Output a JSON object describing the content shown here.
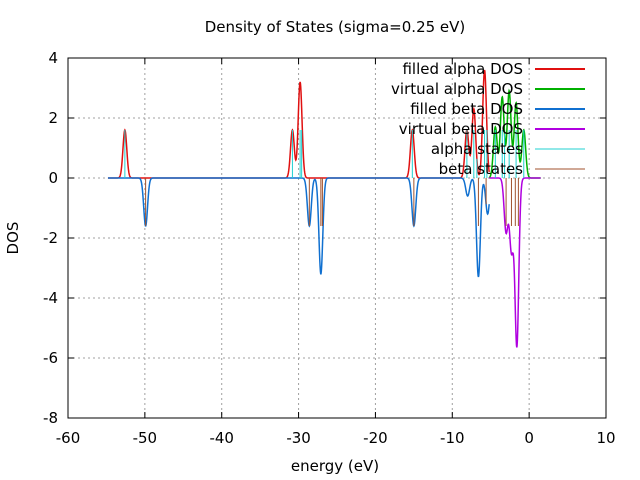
{
  "chart_data": {
    "type": "line",
    "title": "Density of States (sigma=0.25 eV)",
    "xlabel": "energy (eV)",
    "ylabel": "DOS",
    "xlim": [
      -60,
      10
    ],
    "ylim": [
      -8,
      4
    ],
    "xticks": [
      -60,
      -50,
      -40,
      -30,
      -20,
      -10,
      0,
      10
    ],
    "yticks": [
      -8,
      -6,
      -4,
      -2,
      0,
      2,
      4
    ],
    "grid": true,
    "legend_position": "top-right",
    "sigma": 0.25,
    "x_range_curve": [
      -54.8,
      1.5
    ],
    "series": [
      {
        "name": "filled alpha DOS",
        "color": "#e01010",
        "kind": "line",
        "sign": 1,
        "x_max": -5.2,
        "peaks": [
          {
            "center": -52.6,
            "height": 1.6
          },
          {
            "center": -30.8,
            "height": 1.6
          },
          {
            "center": -29.8,
            "height": 3.2
          },
          {
            "center": -15.2,
            "height": 1.6
          },
          {
            "center": -8.1,
            "height": 1.6
          },
          {
            "center": -7.2,
            "height": 2.3
          },
          {
            "center": -5.8,
            "height": 3.6
          }
        ]
      },
      {
        "name": "virtual alpha DOS",
        "color": "#00b000",
        "kind": "line",
        "sign": 1,
        "x_min": -5.2,
        "peaks": [
          {
            "center": -4.4,
            "height": 1.7
          },
          {
            "center": -3.5,
            "height": 2.7
          },
          {
            "center": -2.6,
            "height": 2.9
          },
          {
            "center": -1.7,
            "height": 2.5
          },
          {
            "center": -0.7,
            "height": 1.6
          }
        ]
      },
      {
        "name": "filled beta DOS",
        "color": "#1070d0",
        "kind": "line",
        "sign": -1,
        "x_max": -5.2,
        "peaks": [
          {
            "center": -49.9,
            "height": 1.6
          },
          {
            "center": -28.6,
            "height": 1.6
          },
          {
            "center": -27.1,
            "height": 3.2
          },
          {
            "center": -15.0,
            "height": 1.6
          },
          {
            "center": -8.0,
            "height": 0.6
          },
          {
            "center": -6.6,
            "height": 3.3
          },
          {
            "center": -5.4,
            "height": 1.2
          }
        ]
      },
      {
        "name": "virtual beta DOS",
        "color": "#b000e0",
        "kind": "line",
        "sign": -1,
        "x_min": -5.2,
        "peaks": [
          {
            "center": -3.0,
            "height": 1.8
          },
          {
            "center": -2.3,
            "height": 2.4
          },
          {
            "center": -1.6,
            "height": 5.6
          }
        ]
      },
      {
        "name": "alpha states",
        "color": "#20d0d0",
        "kind": "sticks",
        "sign": 1,
        "x": [
          -52.6,
          -30.8,
          -29.8,
          -29.6,
          -15.2,
          -8.1,
          -7.2,
          -6.8,
          -5.8,
          -5.5,
          -4.4,
          -3.5,
          -3.2,
          -2.6,
          -1.7,
          -0.7
        ]
      },
      {
        "name": "beta states",
        "color": "#a0522d",
        "kind": "sticks",
        "sign": -1,
        "x": [
          -49.9,
          -28.6,
          -27.1,
          -26.9,
          -15.0,
          -6.6,
          -5.6,
          -3.0,
          -2.3,
          -1.8,
          -1.4
        ]
      }
    ]
  }
}
